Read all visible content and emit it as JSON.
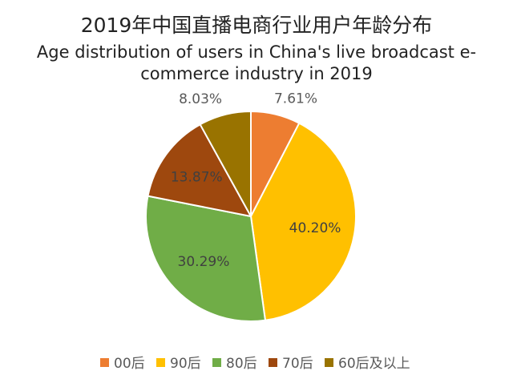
{
  "chart_data": {
    "type": "pie",
    "title": "2019年中国直播电商行业用户年龄分布",
    "subtitle": "Age distribution of users in China's live broadcast e-commerce industry in 2019",
    "categories": [
      "00后",
      "90后",
      "80后",
      "70后",
      "60后及以上"
    ],
    "values": [
      7.61,
      40.2,
      30.29,
      13.87,
      8.03
    ],
    "data_labels": [
      "7.61%",
      "40.20%",
      "30.29%",
      "13.87%",
      "8.03%"
    ],
    "colors": [
      "#ED7D31",
      "#FFC000",
      "#70AD47",
      "#9E480E",
      "#997300"
    ],
    "label_colors": [
      "#595959",
      "#404040",
      "#404040",
      "#404040",
      "#595959"
    ],
    "legend": "bottom"
  }
}
